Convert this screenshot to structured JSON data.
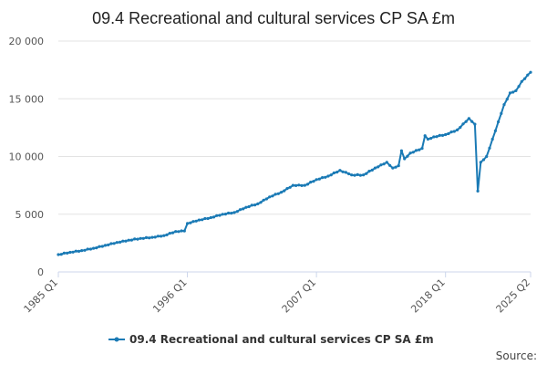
{
  "chart_data": {
    "type": "line",
    "title": "09.4 Recreational and cultural services CP SA £m",
    "xlabel": "",
    "ylabel": "",
    "ylim": [
      0,
      20000
    ],
    "yticks": [
      0,
      5000,
      10000,
      15000,
      20000
    ],
    "ytick_labels": [
      "0",
      "5 000",
      "10 000",
      "15 000",
      "20 000"
    ],
    "xlim": [
      1985.0,
      2025.25
    ],
    "xtick_labels": [
      "1985 Q1",
      "1996 Q1",
      "2007 Q1",
      "2018 Q1",
      "2025 Q2"
    ],
    "xtick_positions": [
      1985.0,
      1996.0,
      2007.0,
      2018.0,
      2025.25
    ],
    "grid": "horizontal",
    "legend_position": "bottom",
    "source_label": "Source:",
    "color": "#1a7ab5",
    "series": [
      {
        "name": "09.4 Recreational and cultural services CP SA £m",
        "points": [
          [
            1985.0,
            1500
          ],
          [
            1986.0,
            1700
          ],
          [
            1987.0,
            1850
          ],
          [
            1988.0,
            2050
          ],
          [
            1989.0,
            2300
          ],
          [
            1990.0,
            2550
          ],
          [
            1991.0,
            2750
          ],
          [
            1992.0,
            2900
          ],
          [
            1993.0,
            3000
          ],
          [
            1994.0,
            3150
          ],
          [
            1995.0,
            3500
          ],
          [
            1995.75,
            3550
          ],
          [
            1996.0,
            4200
          ],
          [
            1997.0,
            4500
          ],
          [
            1998.0,
            4700
          ],
          [
            1999.0,
            5000
          ],
          [
            2000.0,
            5150
          ],
          [
            2001.0,
            5600
          ],
          [
            2002.0,
            5900
          ],
          [
            2003.0,
            6500
          ],
          [
            2004.0,
            6900
          ],
          [
            2005.0,
            7500
          ],
          [
            2006.0,
            7500
          ],
          [
            2007.0,
            8000
          ],
          [
            2008.0,
            8300
          ],
          [
            2009.0,
            8800
          ],
          [
            2009.75,
            8500
          ],
          [
            2010.0,
            8400
          ],
          [
            2011.0,
            8400
          ],
          [
            2012.0,
            9000
          ],
          [
            2013.0,
            9500
          ],
          [
            2013.5,
            9000
          ],
          [
            2014.0,
            9200
          ],
          [
            2014.25,
            10500
          ],
          [
            2014.5,
            9800
          ],
          [
            2015.0,
            10300
          ],
          [
            2016.0,
            10700
          ],
          [
            2016.25,
            11800
          ],
          [
            2016.5,
            11500
          ],
          [
            2017.0,
            11700
          ],
          [
            2018.0,
            11900
          ],
          [
            2019.0,
            12300
          ],
          [
            2020.0,
            13300
          ],
          [
            2020.5,
            12800
          ],
          [
            2020.75,
            7000
          ],
          [
            2021.0,
            9500
          ],
          [
            2021.5,
            10000
          ],
          [
            2022.0,
            11500
          ],
          [
            2022.5,
            13000
          ],
          [
            2023.0,
            14500
          ],
          [
            2023.5,
            15500
          ],
          [
            2024.0,
            15700
          ],
          [
            2024.5,
            16500
          ],
          [
            2025.25,
            17300
          ]
        ]
      }
    ]
  }
}
